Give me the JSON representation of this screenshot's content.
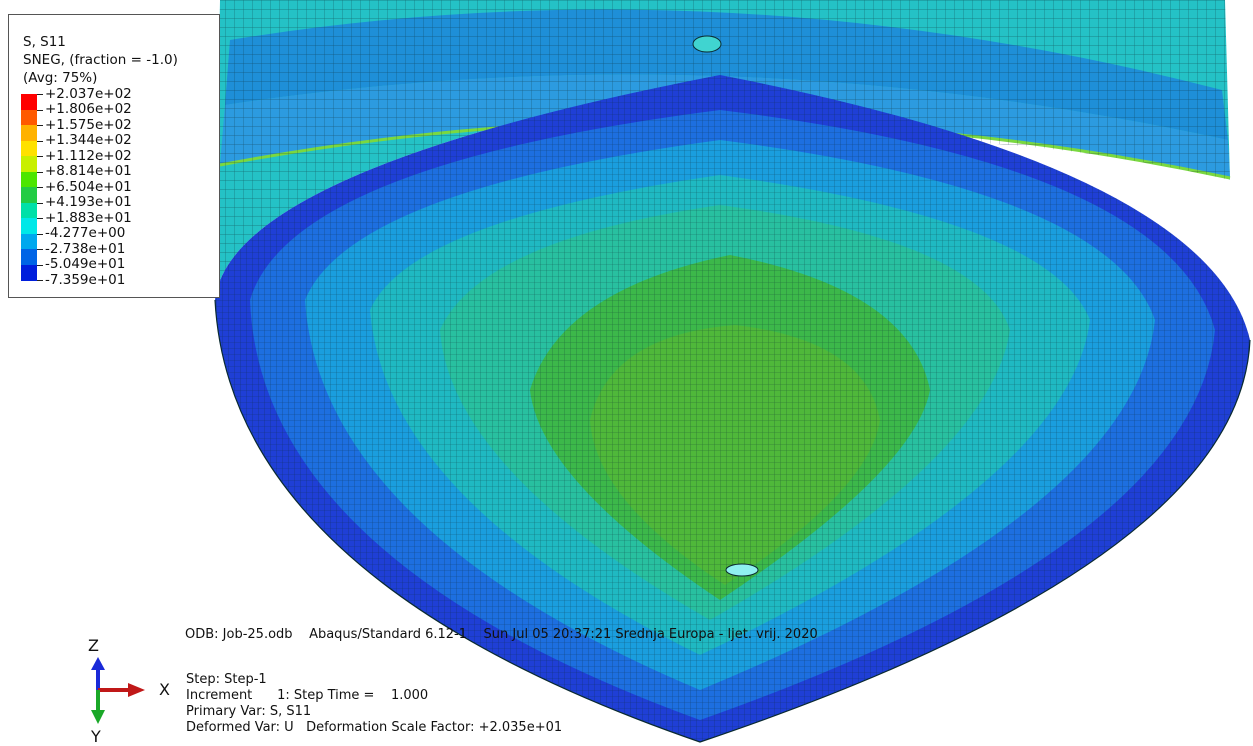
{
  "legend": {
    "title_line1": "S, S11",
    "title_line2": "SNEG, (fraction = -1.0)",
    "title_line3": "(Avg: 75%)",
    "colors": [
      "#ff0000",
      "#ff5a00",
      "#ffb200",
      "#ffe100",
      "#c8f000",
      "#4ce600",
      "#22cc44",
      "#00e0a8",
      "#00e8e8",
      "#00a8ee",
      "#0064e6",
      "#001edc"
    ],
    "values": [
      "+2.037e+02",
      "+1.806e+02",
      "+1.575e+02",
      "+1.344e+02",
      "+1.112e+02",
      "+8.814e+01",
      "+6.504e+01",
      "+4.193e+01",
      "+1.883e+01",
      "-4.277e+00",
      "-2.738e+01",
      "-5.049e+01",
      "-7.359e+01"
    ]
  },
  "info": {
    "odb": "ODB: Job-25.odb    Abaqus/Standard 6.12-1    Sun Jul 05 20:37:21 Srednja Europa - ljet. vrij. 2020",
    "step": "Step: Step-1",
    "increment": "Increment      1: Step Time =    1.000",
    "primary_var": "Primary Var: S, S11",
    "deformed_var": "Deformed Var: U   Deformation Scale Factor: +2.035e+01"
  },
  "triad": {
    "z": "Z",
    "x": "X",
    "y": "Y"
  }
}
